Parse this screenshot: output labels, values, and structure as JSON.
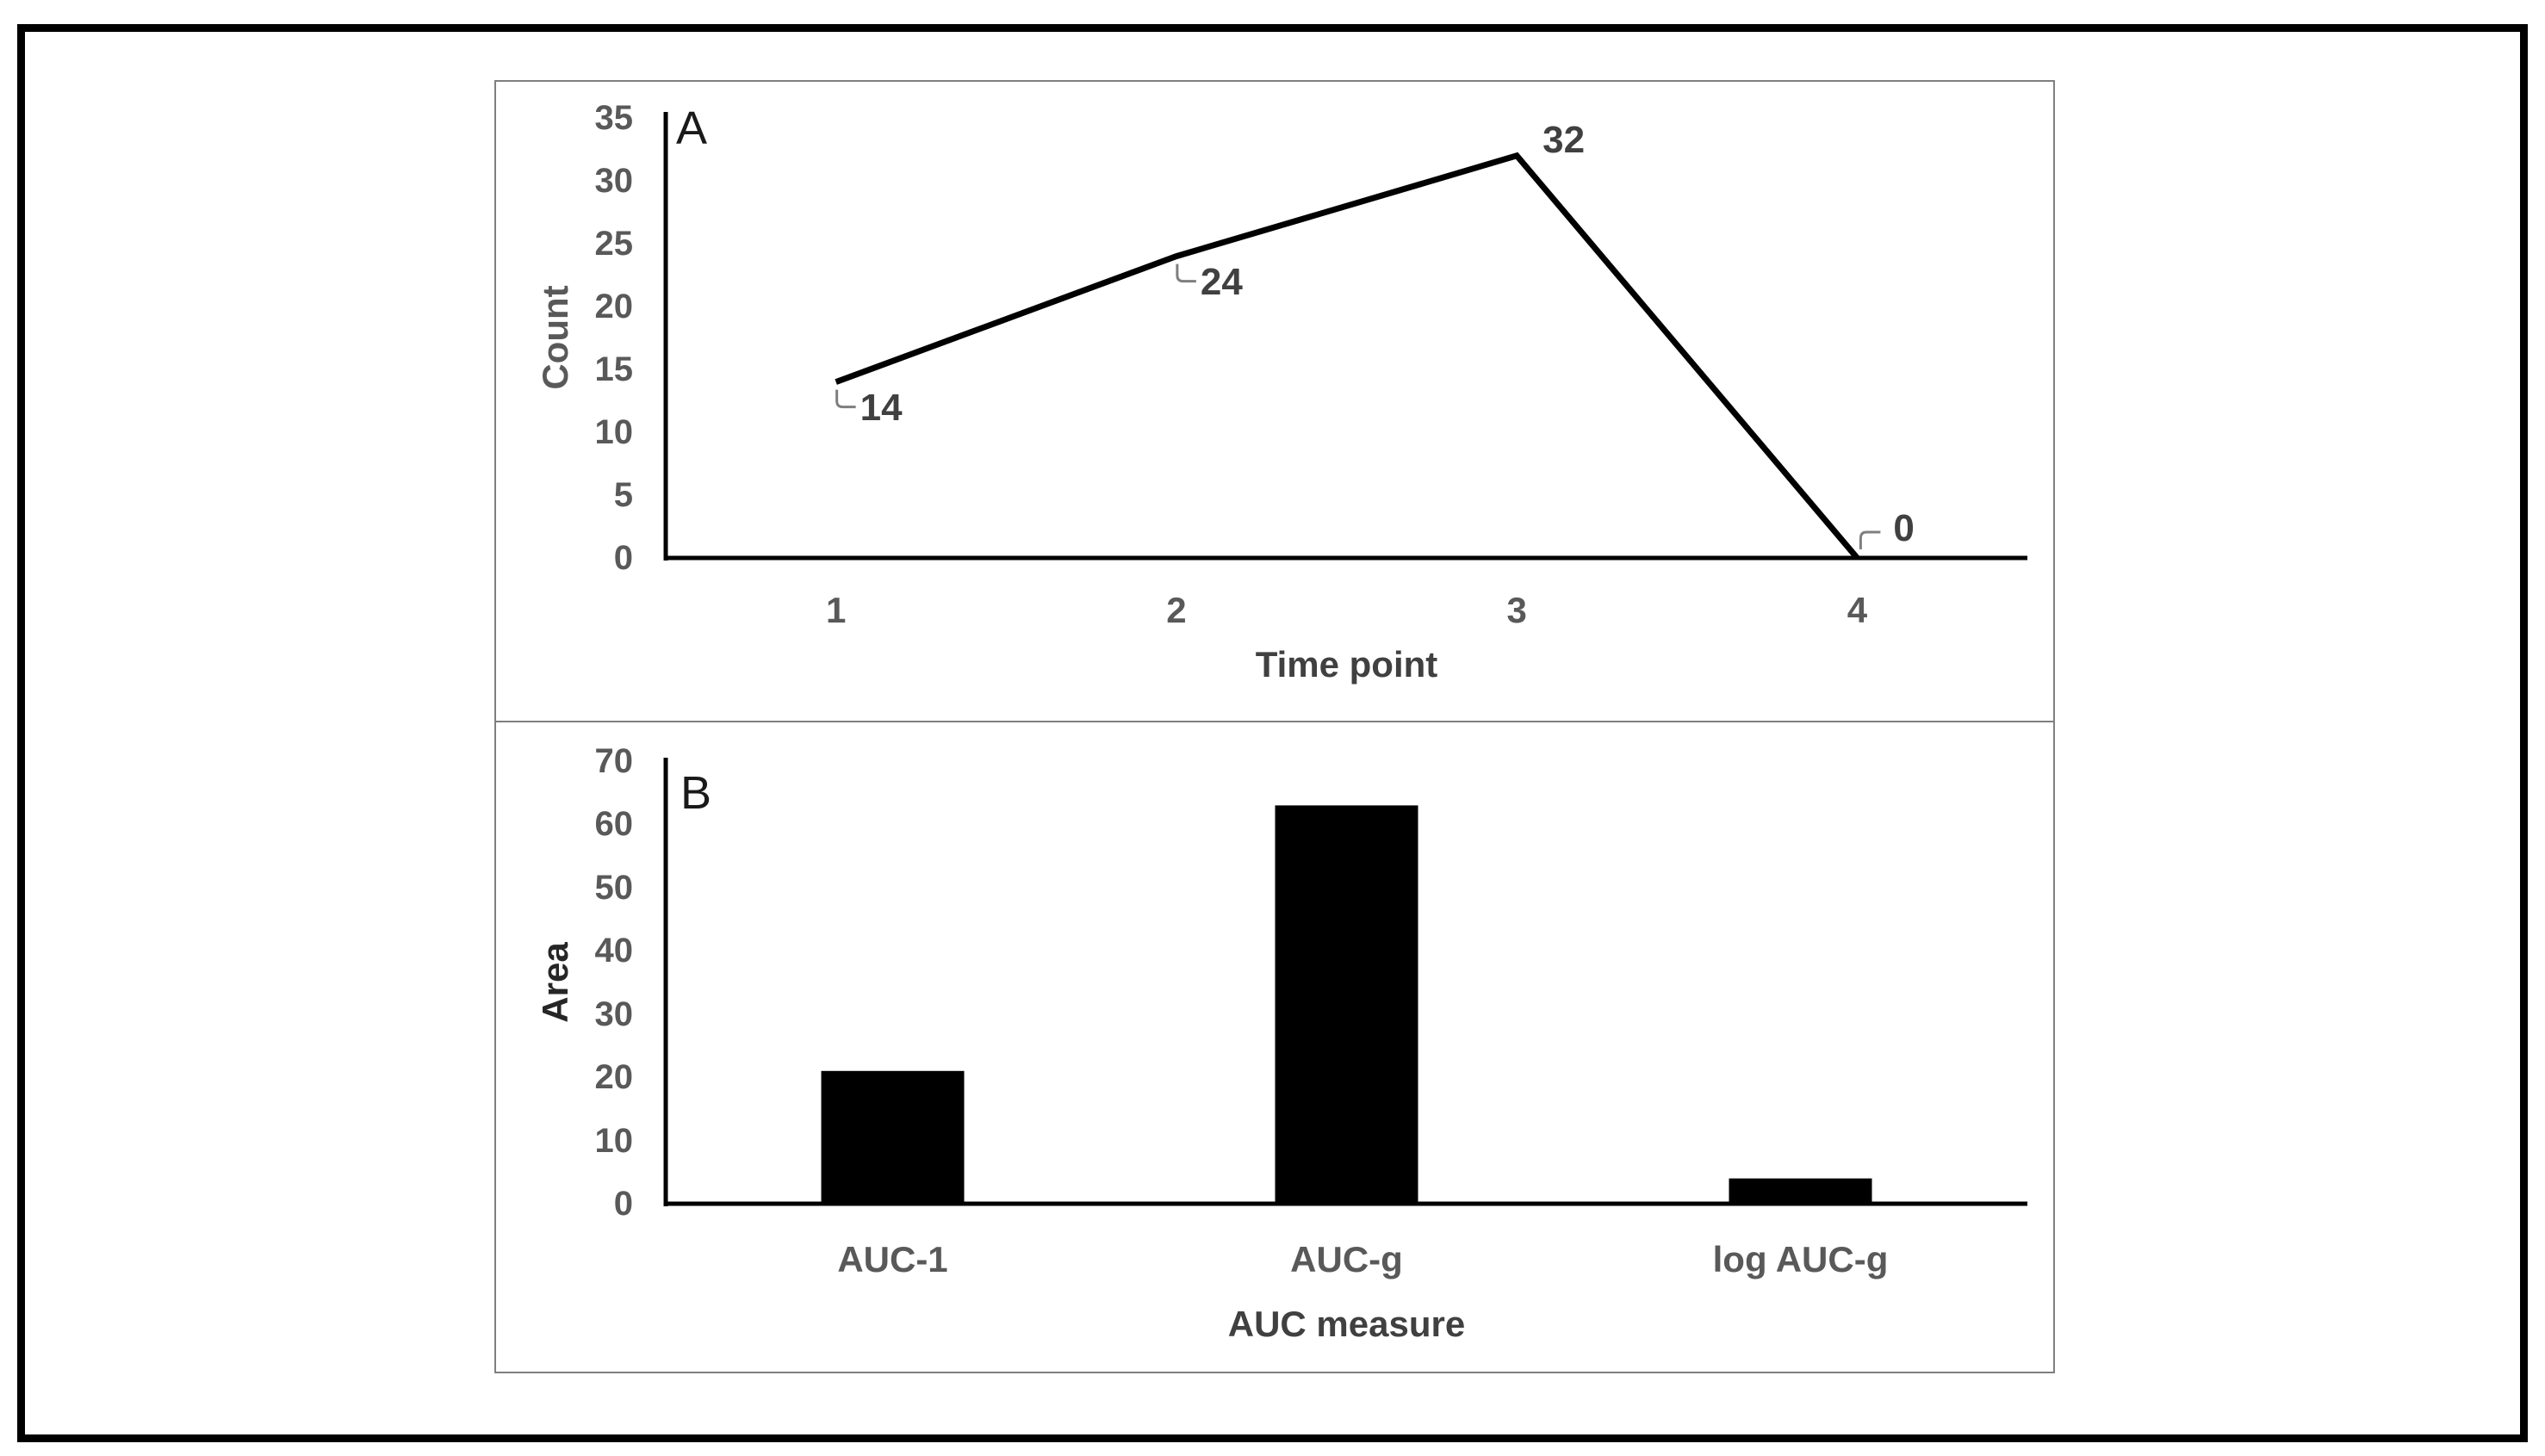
{
  "figure": {
    "background": "#ffffff",
    "outer_border_color": "#000000",
    "frame_border_color": "#7f7f7f",
    "axis_line_color": "#000000",
    "tick_label_color": "#595959",
    "data_label_color": "#404040",
    "leader_line_color": "#7f7f7f"
  },
  "chart_data": [
    {
      "type": "line",
      "panel_label": "A",
      "x": [
        1,
        2,
        3,
        4
      ],
      "categories": [
        "1",
        "2",
        "3",
        "4"
      ],
      "values": [
        14,
        24,
        32,
        0
      ],
      "data_labels": [
        "14",
        "24",
        "32",
        "0"
      ],
      "title": "",
      "xlabel": "Time point",
      "ylabel": "Count",
      "ylim": [
        0,
        35
      ],
      "ytick_step": 5,
      "yticks": [
        0,
        5,
        10,
        15,
        20,
        25,
        30,
        35
      ],
      "grid": false,
      "legend_position": "none",
      "line_color": "#000000"
    },
    {
      "type": "bar",
      "panel_label": "B",
      "categories": [
        "AUC-1",
        "AUC-g",
        "log AUC-g"
      ],
      "values": [
        21,
        63,
        4
      ],
      "title": "",
      "xlabel": "AUC measure",
      "ylabel": "Area",
      "ylim": [
        0,
        70
      ],
      "ytick_step": 10,
      "yticks": [
        0,
        10,
        20,
        30,
        40,
        50,
        60,
        70
      ],
      "grid": false,
      "legend_position": "none",
      "bar_color": "#000000"
    }
  ]
}
